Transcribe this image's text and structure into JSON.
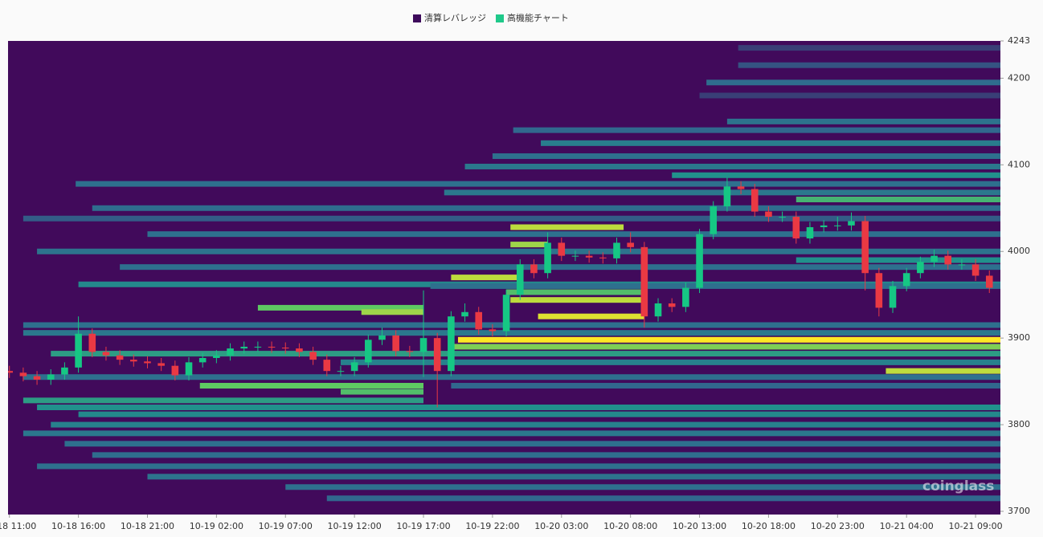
{
  "chart_data": {
    "type": "liquidation-heatmap",
    "legend": [
      {
        "name": "清算レバレッジ",
        "color": "#3d0a5b"
      },
      {
        "name": "高機能チャート",
        "color": "#1fc98a"
      }
    ],
    "watermark": "coinglass",
    "background": "#410a5b",
    "colorscale": [
      "#440154",
      "#31688e",
      "#21918c",
      "#5ec962",
      "#fde725"
    ],
    "up_color": "#16c784",
    "down_color": "#ea3943",
    "xlim": [
      -0.1,
      71.8
    ],
    "xticks": [
      {
        "value": 0,
        "label": "10-18 11:00"
      },
      {
        "value": 5,
        "label": "10-18 16:00"
      },
      {
        "value": 10,
        "label": "10-18 21:00"
      },
      {
        "value": 15,
        "label": "10-19 02:00"
      },
      {
        "value": 20,
        "label": "10-19 07:00"
      },
      {
        "value": 25,
        "label": "10-19 12:00"
      },
      {
        "value": 30,
        "label": "10-19 17:00"
      },
      {
        "value": 35,
        "label": "10-19 22:00"
      },
      {
        "value": 40,
        "label": "10-20 03:00"
      },
      {
        "value": 45,
        "label": "10-20 08:00"
      },
      {
        "value": 50,
        "label": "10-20 13:00"
      },
      {
        "value": 55,
        "label": "10-20 18:00"
      },
      {
        "value": 60,
        "label": "10-20 23:00"
      },
      {
        "value": 65,
        "label": "10-21 04:00"
      },
      {
        "value": 70,
        "label": "10-21 09:00"
      }
    ],
    "ylim": [
      3700,
      4243
    ],
    "yticks": [
      3700,
      3800,
      3900,
      4000,
      4100,
      4200,
      4243
    ],
    "levels": [
      {
        "price": 4235,
        "from": 52.8,
        "to": 71.8,
        "value": 0.15
      },
      {
        "price": 4215,
        "from": 52.8,
        "to": 71.8,
        "value": 0.2
      },
      {
        "price": 4195,
        "from": 50.5,
        "to": 71.8,
        "value": 0.28
      },
      {
        "price": 4180,
        "from": 50,
        "to": 71.8,
        "value": 0.15
      },
      {
        "price": 4150,
        "from": 52,
        "to": 71.8,
        "value": 0.32
      },
      {
        "price": 4140,
        "from": 36.5,
        "to": 71.8,
        "value": 0.25
      },
      {
        "price": 4125,
        "from": 38.5,
        "to": 71.8,
        "value": 0.38
      },
      {
        "price": 4110,
        "from": 35,
        "to": 71.8,
        "value": 0.3
      },
      {
        "price": 4098,
        "from": 33,
        "to": 71.8,
        "value": 0.35
      },
      {
        "price": 4088,
        "from": 48,
        "to": 71.8,
        "value": 0.5
      },
      {
        "price": 4078,
        "from": 4.8,
        "to": 71.8,
        "value": 0.3
      },
      {
        "price": 4068,
        "from": 31.5,
        "to": 71.8,
        "value": 0.35
      },
      {
        "price": 4060,
        "from": 57,
        "to": 71.8,
        "value": 0.65
      },
      {
        "price": 4050,
        "from": 6,
        "to": 71.8,
        "value": 0.28
      },
      {
        "price": 4038,
        "from": 1,
        "to": 71.8,
        "value": 0.22
      },
      {
        "price": 4028,
        "from": 36.3,
        "to": 44.5,
        "value": 0.9
      },
      {
        "price": 4020,
        "from": 10,
        "to": 71.8,
        "value": 0.3
      },
      {
        "price": 4008,
        "from": 36.3,
        "to": 39,
        "value": 0.85
      },
      {
        "price": 4000,
        "from": 2,
        "to": 71.8,
        "value": 0.32
      },
      {
        "price": 3990,
        "from": 57,
        "to": 71.8,
        "value": 0.5
      },
      {
        "price": 3982,
        "from": 8,
        "to": 71.8,
        "value": 0.3
      },
      {
        "price": 3970,
        "from": 32,
        "to": 37,
        "value": 0.9
      },
      {
        "price": 3962,
        "from": 5,
        "to": 71.8,
        "value": 0.45
      },
      {
        "price": 3960,
        "from": 30.5,
        "to": 71.8,
        "value": 0.3
      },
      {
        "price": 3953,
        "from": 36,
        "to": 46,
        "value": 0.7
      },
      {
        "price": 3944,
        "from": 36.3,
        "to": 46,
        "value": 0.9
      },
      {
        "price": 3935,
        "from": 18,
        "to": 30,
        "value": 0.75
      },
      {
        "price": 3930,
        "from": 25.5,
        "to": 30,
        "value": 0.85
      },
      {
        "price": 3925,
        "from": 38.3,
        "to": 46,
        "value": 0.95
      },
      {
        "price": 3915,
        "from": 1,
        "to": 71.8,
        "value": 0.3
      },
      {
        "price": 3906,
        "from": 1,
        "to": 71.8,
        "value": 0.35
      },
      {
        "price": 3898,
        "from": 32.5,
        "to": 71.8,
        "value": 1.0
      },
      {
        "price": 3890,
        "from": 32,
        "to": 71.8,
        "value": 0.8
      },
      {
        "price": 3882,
        "from": 3,
        "to": 71.8,
        "value": 0.55
      },
      {
        "price": 3872,
        "from": 24,
        "to": 71.8,
        "value": 0.4
      },
      {
        "price": 3862,
        "from": 63.5,
        "to": 71.8,
        "value": 0.9
      },
      {
        "price": 3855,
        "from": 1,
        "to": 71.8,
        "value": 0.3
      },
      {
        "price": 3845,
        "from": 13.8,
        "to": 30,
        "value": 0.75
      },
      {
        "price": 3845,
        "from": 32,
        "to": 71.8,
        "value": 0.25
      },
      {
        "price": 3838,
        "from": 24,
        "to": 30,
        "value": 0.7
      },
      {
        "price": 3828,
        "from": 1,
        "to": 30,
        "value": 0.55
      },
      {
        "price": 3820,
        "from": 2,
        "to": 71.8,
        "value": 0.5
      },
      {
        "price": 3812,
        "from": 5,
        "to": 71.8,
        "value": 0.45
      },
      {
        "price": 3800,
        "from": 3,
        "to": 71.8,
        "value": 0.4
      },
      {
        "price": 3790,
        "from": 1,
        "to": 71.8,
        "value": 0.35
      },
      {
        "price": 3778,
        "from": 4,
        "to": 71.8,
        "value": 0.3
      },
      {
        "price": 3765,
        "from": 6,
        "to": 71.8,
        "value": 0.28
      },
      {
        "price": 3752,
        "from": 2,
        "to": 71.8,
        "value": 0.3
      },
      {
        "price": 3740,
        "from": 10,
        "to": 71.8,
        "value": 0.32
      },
      {
        "price": 3728,
        "from": 20,
        "to": 71.8,
        "value": 0.3
      },
      {
        "price": 3715,
        "from": 23,
        "to": 71.8,
        "value": 0.25
      }
    ],
    "x": [
      0,
      1,
      2,
      3,
      4,
      5,
      6,
      7,
      8,
      9,
      10,
      11,
      12,
      13,
      14,
      15,
      16,
      17,
      18,
      19,
      20,
      21,
      22,
      23,
      24,
      25,
      26,
      27,
      28,
      29,
      30,
      31,
      32,
      33,
      34,
      35,
      36,
      37,
      38,
      39,
      40,
      41,
      42,
      43,
      44,
      45,
      46,
      47,
      48,
      49,
      50,
      51,
      52,
      53,
      54,
      55,
      56,
      57,
      58,
      59,
      60,
      61,
      62,
      63,
      64,
      65,
      66,
      67,
      68,
      69,
      70,
      71
    ],
    "open": [
      3862,
      3860,
      3856,
      3852,
      3858,
      3866,
      3905,
      3884,
      3880,
      3875,
      3873,
      3871,
      3868,
      3857,
      3872,
      3877,
      3880,
      3888,
      3890,
      3890,
      3889,
      3888,
      3884,
      3875,
      3862,
      3862,
      3872,
      3898,
      3903,
      3885,
      3884,
      3900,
      3862,
      3925,
      3930,
      3910,
      3908,
      3950,
      3985,
      3975,
      4010,
      3995,
      3995,
      3993,
      3992,
      4010,
      4005,
      3925,
      3940,
      3936,
      3958,
      4020,
      4052,
      4075,
      4072,
      4046,
      4040,
      4040,
      4015,
      4028,
      4030,
      4030,
      4035,
      3975,
      3935,
      3960,
      3975,
      3988,
      3995,
      3985,
      3985,
      3972
    ],
    "high": [
      3868,
      3866,
      3862,
      3864,
      3872,
      3925,
      3911,
      3890,
      3886,
      3881,
      3879,
      3877,
      3874,
      3878,
      3883,
      3886,
      3894,
      3896,
      3896,
      3896,
      3895,
      3894,
      3890,
      3881,
      3868,
      3878,
      3904,
      3912,
      3909,
      3891,
      3955,
      3906,
      3931,
      3940,
      3936,
      3916,
      3956,
      3991,
      3991,
      4022,
      4016,
      4001,
      4001,
      3999,
      4016,
      4022,
      4011,
      3946,
      3946,
      3964,
      4026,
      4058,
      4085,
      4081,
      4078,
      4052,
      4046,
      4046,
      4034,
      4036,
      4040,
      4045,
      4041,
      3981,
      3966,
      3981,
      3994,
      4002,
      4001,
      3991,
      3991,
      3978
    ],
    "low": [
      3854,
      3850,
      3846,
      3846,
      3852,
      3860,
      3878,
      3874,
      3869,
      3867,
      3865,
      3862,
      3851,
      3851,
      3866,
      3871,
      3874,
      3882,
      3884,
      3883,
      3882,
      3878,
      3869,
      3856,
      3856,
      3856,
      3866,
      3892,
      3879,
      3878,
      3855,
      3820,
      3856,
      3919,
      3904,
      3902,
      3902,
      3944,
      3969,
      3969,
      3989,
      3989,
      3987,
      3986,
      3986,
      3999,
      3912,
      3919,
      3930,
      3930,
      3952,
      4014,
      4046,
      4066,
      4040,
      4034,
      4034,
      4009,
      4009,
      4022,
      4024,
      4024,
      3955,
      3925,
      3929,
      3954,
      3969,
      3982,
      3979,
      3979,
      3966,
      3952
    ],
    "close": [
      3860,
      3856,
      3852,
      3858,
      3866,
      3905,
      3884,
      3880,
      3875,
      3873,
      3871,
      3868,
      3857,
      3872,
      3877,
      3880,
      3888,
      3890,
      3890,
      3889,
      3888,
      3884,
      3875,
      3862,
      3862,
      3872,
      3898,
      3903,
      3885,
      3884,
      3900,
      3862,
      3925,
      3930,
      3910,
      3908,
      3950,
      3985,
      3975,
      4010,
      3995,
      3995,
      3993,
      3992,
      4010,
      4005,
      3925,
      3940,
      3936,
      3958,
      4020,
      4052,
      4075,
      4072,
      4046,
      4040,
      4040,
      4015,
      4028,
      4030,
      4030,
      4035,
      3975,
      3935,
      3960,
      3975,
      3988,
      3995,
      3985,
      3985,
      3972,
      3958
    ]
  }
}
